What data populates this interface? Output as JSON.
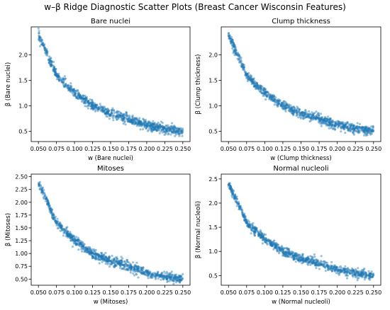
{
  "figure": {
    "title": "w–β Ridge Diagnostic Scatter Plots (Breast Cancer Wisconsin Features)"
  },
  "colors": {
    "point": "#1f77b4",
    "axis": "#000000"
  },
  "chart_data": [
    {
      "type": "scatter",
      "title": "Bare nuclei",
      "xlabel": "w (Bare nuclei)",
      "ylabel": "β (Bare nuclei)",
      "xlim": [
        0.04,
        0.26
      ],
      "ylim": [
        0.3,
        2.55
      ],
      "xticks": [
        "0.050",
        "0.075",
        "0.100",
        "0.125",
        "0.150",
        "0.175",
        "0.200",
        "0.225",
        "0.250"
      ],
      "yticks": [
        "0.5",
        "1.0",
        "1.5",
        "2.0"
      ],
      "x_range": [
        0.05,
        0.25
      ],
      "trend": [
        [
          0.05,
          2.4
        ],
        [
          0.075,
          1.6
        ],
        [
          0.1,
          1.25
        ],
        [
          0.125,
          1.0
        ],
        [
          0.15,
          0.85
        ],
        [
          0.175,
          0.75
        ],
        [
          0.2,
          0.62
        ],
        [
          0.225,
          0.55
        ],
        [
          0.25,
          0.5
        ]
      ],
      "grid": false
    },
    {
      "type": "scatter",
      "title": "Clump thickness",
      "xlabel": "w (Clump thickness)",
      "ylabel": "β (Clump thickness)",
      "xlim": [
        0.04,
        0.26
      ],
      "ylim": [
        0.3,
        2.55
      ],
      "xticks": [
        "0.050",
        "0.075",
        "0.100",
        "0.125",
        "0.150",
        "0.175",
        "0.200",
        "0.225",
        "0.250"
      ],
      "yticks": [
        "0.5",
        "1.0",
        "1.5",
        "2.0"
      ],
      "x_range": [
        0.05,
        0.25
      ],
      "trend": [
        [
          0.05,
          2.4
        ],
        [
          0.075,
          1.6
        ],
        [
          0.1,
          1.25
        ],
        [
          0.125,
          1.0
        ],
        [
          0.15,
          0.85
        ],
        [
          0.175,
          0.75
        ],
        [
          0.2,
          0.62
        ],
        [
          0.225,
          0.55
        ],
        [
          0.25,
          0.5
        ]
      ],
      "grid": false
    },
    {
      "type": "scatter",
      "title": "Mitoses",
      "xlabel": "w (Mitoses)",
      "ylabel": "β (Mitoses)",
      "xlim": [
        0.04,
        0.26
      ],
      "ylim": [
        0.38,
        2.55
      ],
      "xticks": [
        "0.050",
        "0.075",
        "0.100",
        "0.125",
        "0.150",
        "0.175",
        "0.200",
        "0.225",
        "0.250"
      ],
      "yticks": [
        "0.50",
        "0.75",
        "1.00",
        "1.25",
        "1.50",
        "1.75",
        "2.00",
        "2.25",
        "2.50"
      ],
      "x_range": [
        0.05,
        0.25
      ],
      "trend": [
        [
          0.05,
          2.4
        ],
        [
          0.075,
          1.6
        ],
        [
          0.1,
          1.25
        ],
        [
          0.125,
          1.0
        ],
        [
          0.15,
          0.85
        ],
        [
          0.175,
          0.75
        ],
        [
          0.2,
          0.62
        ],
        [
          0.225,
          0.55
        ],
        [
          0.25,
          0.5
        ]
      ],
      "grid": false
    },
    {
      "type": "scatter",
      "title": "Normal nucleoli",
      "xlabel": "w (Normal nucleoli)",
      "ylabel": "β (Normal nucleoli)",
      "xlim": [
        0.04,
        0.26
      ],
      "ylim": [
        0.3,
        2.6
      ],
      "xticks": [
        "0.050",
        "0.075",
        "0.100",
        "0.125",
        "0.150",
        "0.175",
        "0.200",
        "0.225",
        "0.250"
      ],
      "yticks": [
        "0.5",
        "1.0",
        "1.5",
        "2.0",
        "2.5"
      ],
      "x_range": [
        0.05,
        0.25
      ],
      "trend": [
        [
          0.05,
          2.4
        ],
        [
          0.075,
          1.6
        ],
        [
          0.1,
          1.25
        ],
        [
          0.125,
          1.0
        ],
        [
          0.15,
          0.85
        ],
        [
          0.175,
          0.75
        ],
        [
          0.2,
          0.62
        ],
        [
          0.225,
          0.55
        ],
        [
          0.25,
          0.5
        ]
      ],
      "grid": false
    }
  ]
}
